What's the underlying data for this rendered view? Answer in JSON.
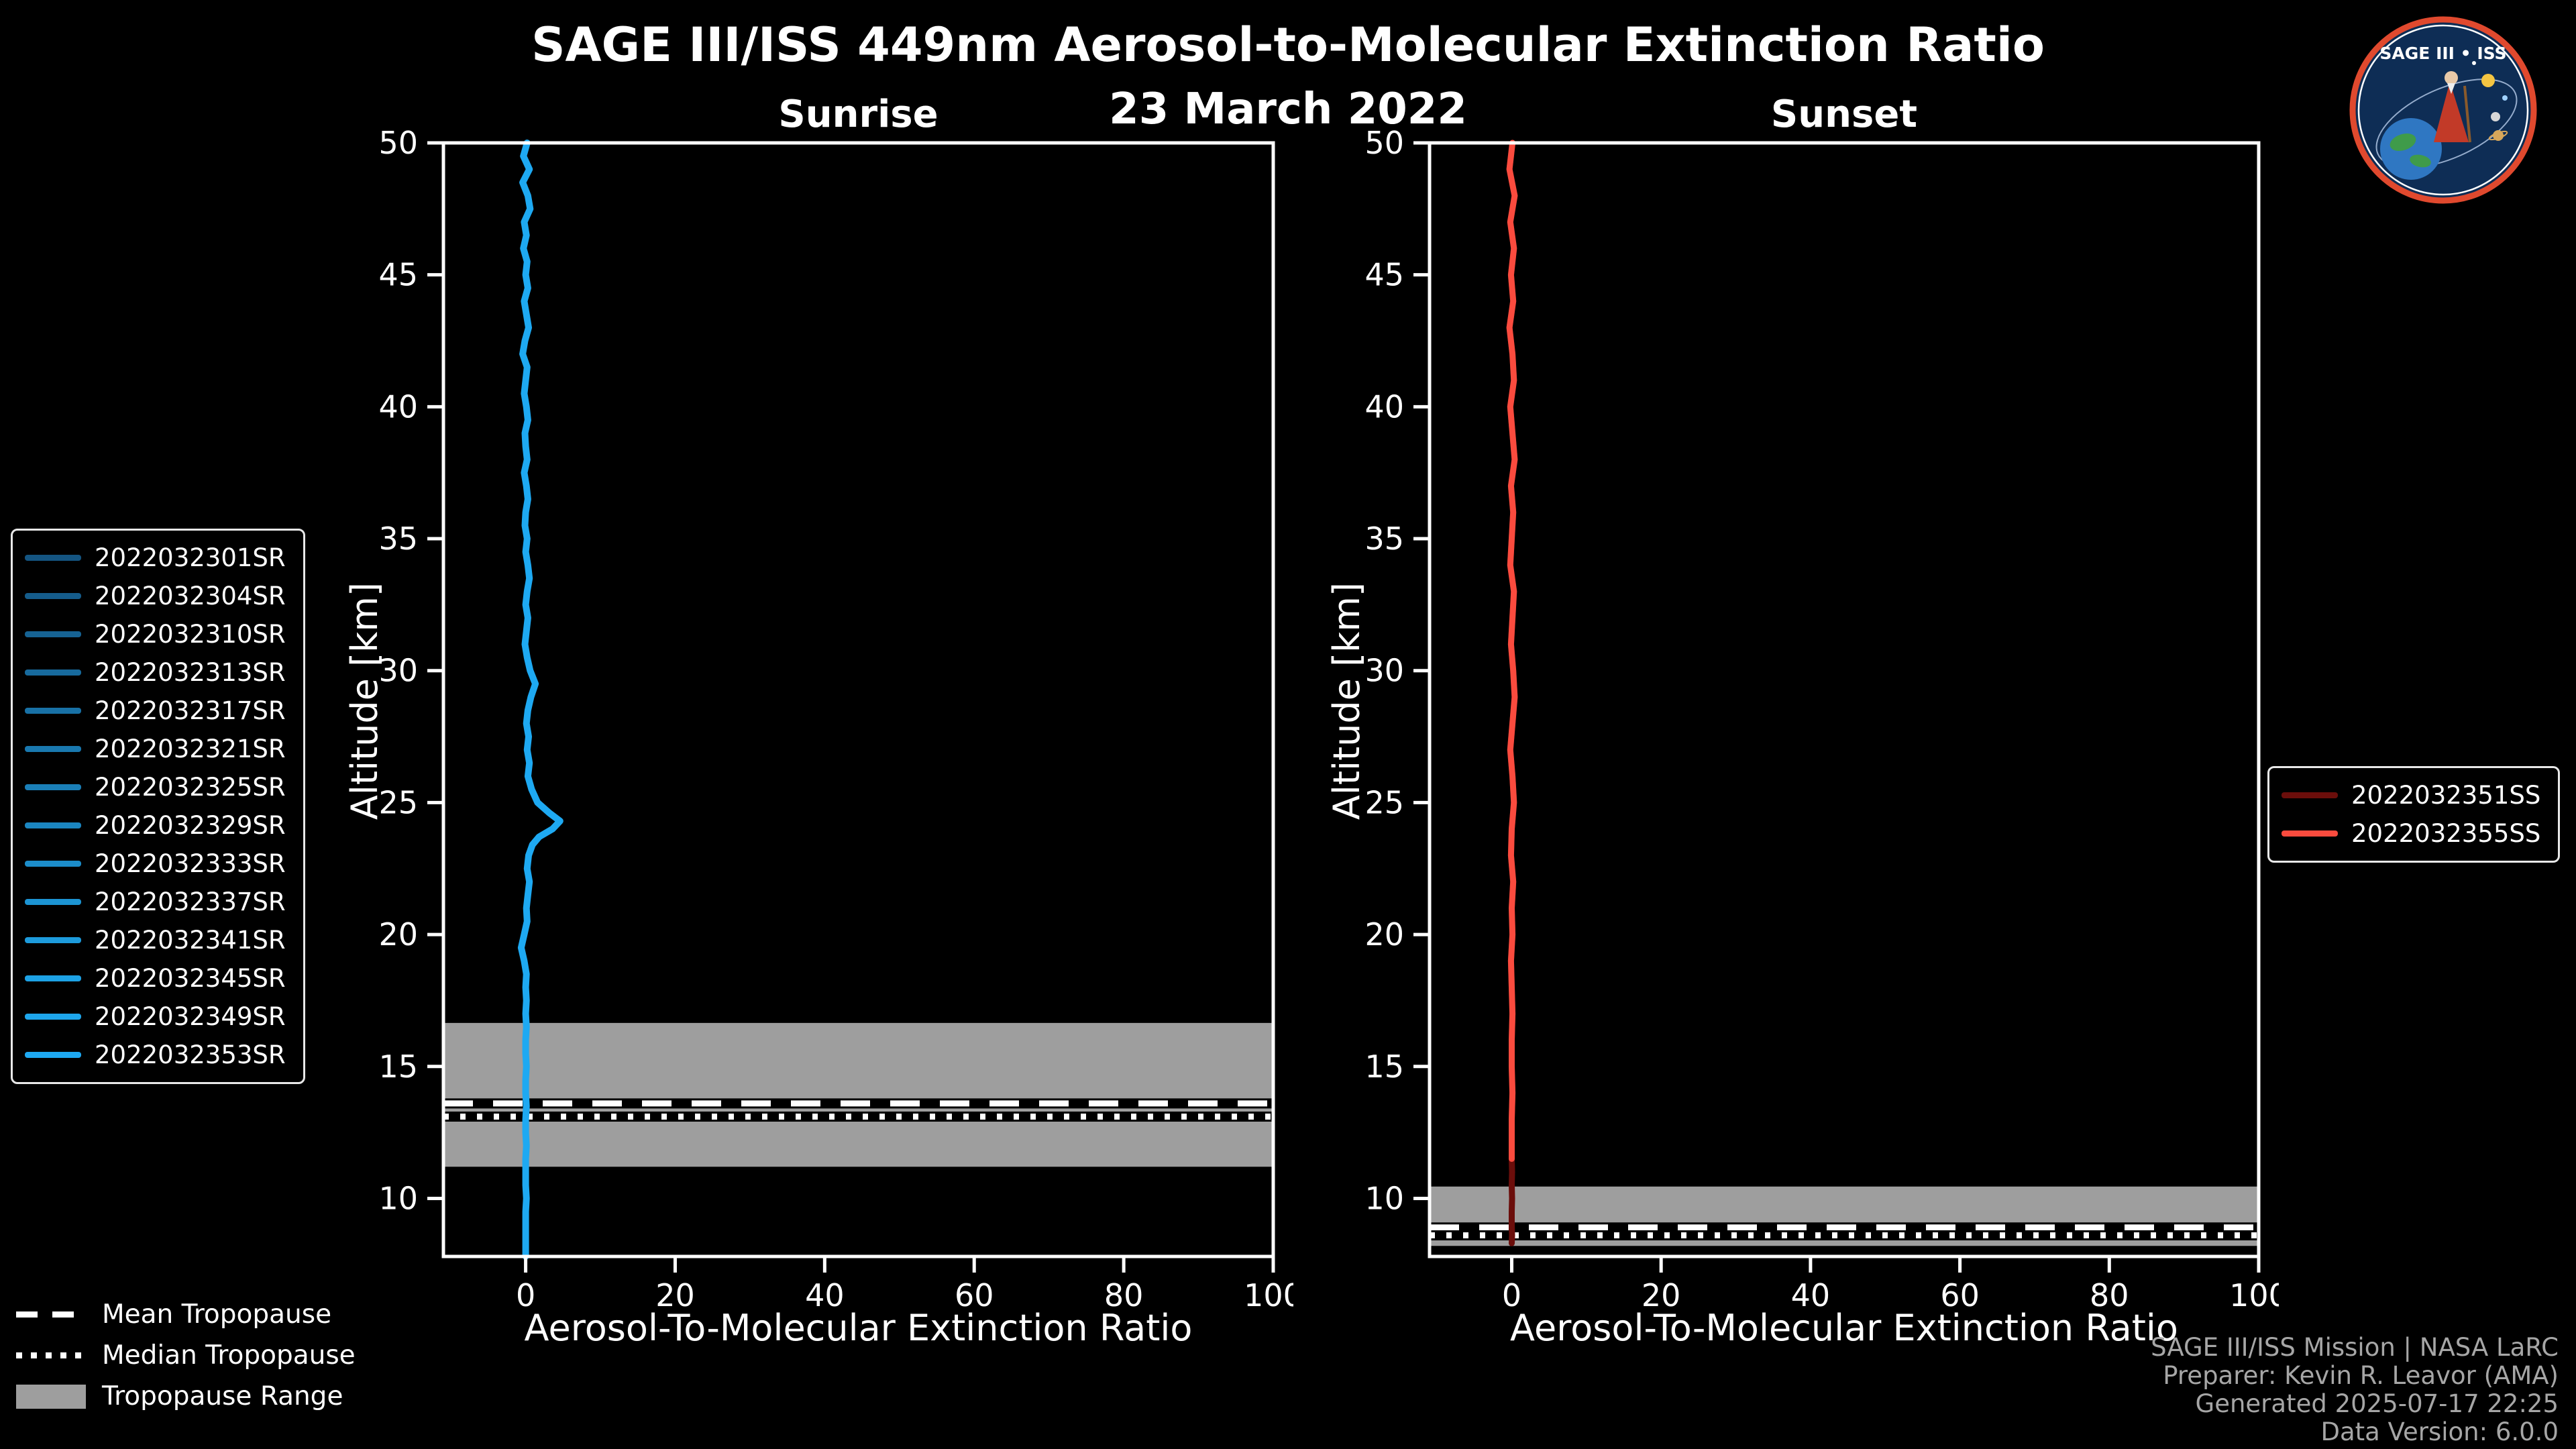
{
  "header": {
    "title": "SAGE III/ISS 449nm Aerosol-to-Molecular Extinction Ratio",
    "date": "23 March 2022"
  },
  "logo": {
    "title": "SAGE III • ISS"
  },
  "tropopause_legend": {
    "mean": "Mean Tropopause",
    "median": "Median Tropopause",
    "range": "Tropopause Range"
  },
  "footer": {
    "lines": [
      "SAGE III/ISS Mission | NASA LaRC",
      "Preparer: Kevin R. Leavor (AMA)",
      "Generated 2025-07-17 22:25",
      "Data Version: 6.0.0"
    ]
  },
  "chart_data": {
    "type": "line",
    "background": "#000000",
    "text_color": "#ffffff",
    "panels": [
      {
        "name": "Sunrise",
        "xlabel": "Aerosol-To-Molecular Extinction Ratio",
        "ylabel": "Altitude [km]",
        "xlim": [
          -11,
          100
        ],
        "ylim": [
          7.8,
          50
        ],
        "xticks": [
          0,
          20,
          40,
          60,
          80,
          100
        ],
        "yticks": [
          10,
          15,
          20,
          25,
          30,
          35,
          40,
          45,
          50
        ],
        "grid": false,
        "band_color": "#9e9e9e",
        "tropopause": {
          "range_km": [
            11.2,
            16.65
          ],
          "mean_km": 13.6,
          "median_km": 13.1
        },
        "legend": {
          "position": "outside-left",
          "items": [
            {
              "label": "2022032301SR",
              "color": "#145582"
            },
            {
              "label": "2022032304SR",
              "color": "#155c8b"
            },
            {
              "label": "2022032310SR",
              "color": "#166394"
            },
            {
              "label": "2022032313SR",
              "color": "#176a9d"
            },
            {
              "label": "2022032317SR",
              "color": "#1871a6"
            },
            {
              "label": "2022032321SR",
              "color": "#1978af"
            },
            {
              "label": "2022032325SR",
              "color": "#1a7fb8"
            },
            {
              "label": "2022032329SR",
              "color": "#1b86c1"
            },
            {
              "label": "2022032333SR",
              "color": "#1c8dca"
            },
            {
              "label": "2022032337SR",
              "color": "#1c94d3"
            },
            {
              "label": "2022032341SR",
              "color": "#1d9bdc"
            },
            {
              "label": "2022032345SR",
              "color": "#1da2e5"
            },
            {
              "label": "2022032349SR",
              "color": "#1ea6ec"
            },
            {
              "label": "2022032353SR",
              "color": "#1ea9f2"
            }
          ]
        },
        "profiles": [
          {
            "name": "sunrise-composite-14-events",
            "color": "#1ea9f2",
            "width": 10,
            "altitude_km": [
              50,
              49.5,
              49,
              48.5,
              48,
              47.5,
              47,
              46.5,
              46,
              45.5,
              45,
              44.5,
              44,
              43.5,
              43,
              42.5,
              42,
              41.5,
              41,
              40.5,
              40,
              39.5,
              39,
              38.5,
              38,
              37.5,
              37,
              36.5,
              36,
              35.5,
              35,
              34.5,
              34,
              33.5,
              33,
              32.5,
              32,
              31.5,
              31,
              30.5,
              30,
              29.5,
              29,
              28.5,
              28,
              27.5,
              27,
              26.5,
              26,
              25.5,
              25,
              24.6,
              24.3,
              24,
              23.7,
              23.4,
              23,
              22.5,
              22,
              21.5,
              21,
              20.5,
              20,
              19.5,
              19,
              18.5,
              18,
              17.5,
              17,
              16.5,
              16,
              15.5,
              15,
              14.5,
              14,
              13.5,
              13,
              12.5,
              12,
              11.5,
              11,
              10.5,
              10,
              9.5,
              9,
              8.5,
              7.8
            ],
            "ratio": [
              0.2,
              -0.3,
              0.5,
              -0.4,
              0.3,
              0.6,
              -0.2,
              0.1,
              -0.3,
              0.2,
              0,
              0.3,
              -0.2,
              0.1,
              0.4,
              -0.1,
              -0.4,
              0.2,
              0,
              -0.2,
              0.1,
              0.3,
              -0.1,
              0,
              0.2,
              -0.2,
              0.1,
              0.3,
              0,
              -0.1,
              0.2,
              0,
              0.3,
              0.5,
              0.2,
              0,
              0.3,
              0.1,
              -0.1,
              0.2,
              0.6,
              1.3,
              0.7,
              0.3,
              0.1,
              0.4,
              0.2,
              0.5,
              0.3,
              0.8,
              1.6,
              3.2,
              4.6,
              3.6,
              1.8,
              0.9,
              0.4,
              0.2,
              0.5,
              0.3,
              0.1,
              0.2,
              -0.2,
              -0.6,
              -0.2,
              0.1,
              0,
              0.1,
              0,
              0.1,
              0,
              0,
              0.1,
              0,
              0,
              0.1,
              0,
              0,
              0.1,
              0,
              0,
              0,
              0.1,
              0,
              0,
              0,
              0
            ]
          }
        ]
      },
      {
        "name": "Sunset",
        "xlabel": "Aerosol-To-Molecular Extinction Ratio",
        "ylabel": "Altitude [km]",
        "xlim": [
          -11,
          100
        ],
        "ylim": [
          7.8,
          50
        ],
        "xticks": [
          0,
          20,
          40,
          60,
          80,
          100
        ],
        "yticks": [
          10,
          15,
          20,
          25,
          30,
          35,
          40,
          45,
          50
        ],
        "grid": false,
        "band_color": "#9e9e9e",
        "tropopause": {
          "range_km": [
            8.2,
            10.45
          ],
          "mean_km": 8.9,
          "median_km": 8.6
        },
        "legend": {
          "position": "outside-right",
          "items": [
            {
              "label": "2022032351SS",
              "color": "#6b0e0b"
            },
            {
              "label": "2022032355SS",
              "color": "#fa4b3e"
            }
          ]
        },
        "profiles": [
          {
            "name": "2022032351SS",
            "color": "#6b0e0b",
            "width": 9,
            "altitude_km": [
              50,
              49,
              48,
              47,
              46,
              45,
              44,
              43,
              42,
              41,
              40,
              39,
              38,
              37,
              36,
              35,
              34,
              33,
              32,
              31,
              30,
              29,
              28,
              27,
              26,
              25,
              24,
              23,
              22,
              21,
              20,
              19,
              18,
              17,
              16,
              15,
              14,
              13,
              12,
              11.5,
              11,
              10.5,
              10,
              9.5,
              9,
              8.6,
              8.3
            ],
            "ratio": [
              0.1,
              -0.3,
              0.4,
              -0.2,
              0.3,
              -0.1,
              0.2,
              -0.3,
              0.1,
              0.3,
              -0.2,
              0.1,
              0.4,
              -0.1,
              0.2,
              0,
              -0.2,
              0.3,
              0.1,
              -0.1,
              0.2,
              0.4,
              0.1,
              -0.2,
              0.1,
              0.3,
              0,
              -0.1,
              0.2,
              0,
              0.1,
              -0.1,
              0,
              0.1,
              0,
              0,
              0.1,
              0,
              0,
              0,
              0.05,
              0,
              0.05,
              0,
              0,
              0.05,
              0
            ]
          },
          {
            "name": "2022032355SS",
            "color": "#fa4b3e",
            "width": 9,
            "altitude_km": [
              50,
              49,
              48,
              47,
              46,
              45,
              44,
              43,
              42,
              41,
              40,
              39,
              38,
              37,
              36,
              35,
              34,
              33,
              32,
              31,
              30,
              29,
              28,
              27,
              26,
              25,
              24,
              23,
              22,
              21,
              20,
              19,
              18,
              17,
              16,
              15,
              14,
              13,
              12,
              11.5
            ],
            "ratio": [
              0.1,
              -0.3,
              0.4,
              -0.2,
              0.3,
              -0.1,
              0.2,
              -0.3,
              0.1,
              0.3,
              -0.2,
              0.1,
              0.4,
              -0.1,
              0.2,
              0,
              -0.2,
              0.3,
              0.1,
              -0.1,
              0.2,
              0.4,
              0.1,
              -0.2,
              0.1,
              0.3,
              0,
              -0.1,
              0.2,
              0,
              0.1,
              -0.1,
              0,
              0.1,
              0,
              0,
              0.1,
              0,
              0,
              0
            ]
          }
        ]
      }
    ]
  }
}
